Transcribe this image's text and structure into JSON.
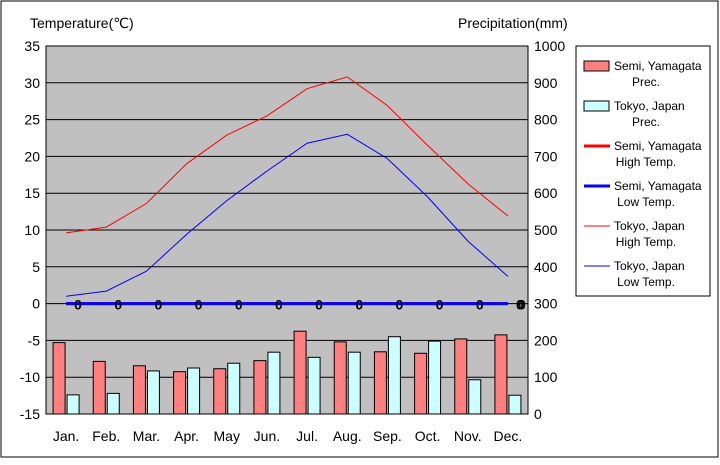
{
  "chart_data": {
    "type": "bar+line",
    "left_axis_title": "Temperature(℃)",
    "right_axis_title": "Precipitation(mm)",
    "categories": [
      "Jan.",
      "Feb.",
      "Mar.",
      "Apr.",
      "May",
      "Jun.",
      "Jul.",
      "Aug.",
      "Sep.",
      "Oct.",
      "Nov.",
      "Dec."
    ],
    "left_ylim": [
      -15,
      35
    ],
    "left_ticks": [
      "35",
      "30",
      "25",
      "20",
      "15",
      "10",
      "5",
      "0",
      "-5",
      "-10",
      "-15"
    ],
    "right_ylim": [
      0,
      1000
    ],
    "right_ticks": [
      "1000",
      "900",
      "800",
      "700",
      "600",
      "500",
      "400",
      "300",
      "200",
      "100",
      "0"
    ],
    "grid": "horizontal",
    "legend_position": "right",
    "plot_background": "#c0c0c0",
    "bar_series": [
      {
        "name": "Semi, Yamagata Prec.",
        "legend_lines": [
          "Semi, Yamagata",
          "Prec."
        ],
        "color": "#ff7f7f",
        "values": [
          194,
          143,
          131,
          115,
          123,
          145,
          225,
          196,
          169,
          165,
          204,
          215
        ]
      },
      {
        "name": "Tokyo, Japan Prec.",
        "legend_lines": [
          "Tokyo, Japan",
          "Prec."
        ],
        "color": "#ccffff",
        "values": [
          52,
          56,
          117,
          125,
          138,
          168,
          154,
          168,
          210,
          198,
          93,
          51
        ]
      }
    ],
    "line_series": [
      {
        "name": "Semi, Yamagata High Temp.",
        "legend_lines": [
          "Semi, Yamagata",
          "High Temp."
        ],
        "color": "#ff0000",
        "width": 3,
        "values": [
          0,
          0,
          0,
          0,
          0,
          0,
          0,
          0,
          0,
          0,
          0,
          0
        ]
      },
      {
        "name": "Semi, Yamagata Low Temp.",
        "legend_lines": [
          "Semi, Yamagata",
          "Low Temp."
        ],
        "color": "#0000ff",
        "width": 3,
        "values": [
          0,
          0,
          0,
          0,
          0,
          0,
          0,
          0,
          0,
          0,
          0,
          0
        ]
      },
      {
        "name": "Tokyo, Japan High Temp.",
        "legend_lines": [
          "Tokyo, Japan",
          "High Temp."
        ],
        "color": "#ff0000",
        "width": 1,
        "values": [
          9.6,
          10.4,
          13.6,
          19.0,
          22.9,
          25.5,
          29.2,
          30.8,
          26.9,
          21.5,
          16.3,
          11.9
        ]
      },
      {
        "name": "Tokyo, Japan Low Temp.",
        "legend_lines": [
          "Tokyo, Japan",
          "Low Temp."
        ],
        "color": "#0000ff",
        "width": 1,
        "values": [
          1.0,
          1.7,
          4.4,
          9.4,
          14.0,
          18.0,
          21.8,
          23.0,
          19.7,
          14.5,
          8.5,
          3.7
        ]
      }
    ],
    "zero_markers": {
      "labels": [
        "0",
        "0",
        "0",
        "0",
        "0",
        "0",
        "0",
        "0",
        "0",
        "0",
        "0",
        "0"
      ],
      "trailing_label": "0"
    }
  }
}
